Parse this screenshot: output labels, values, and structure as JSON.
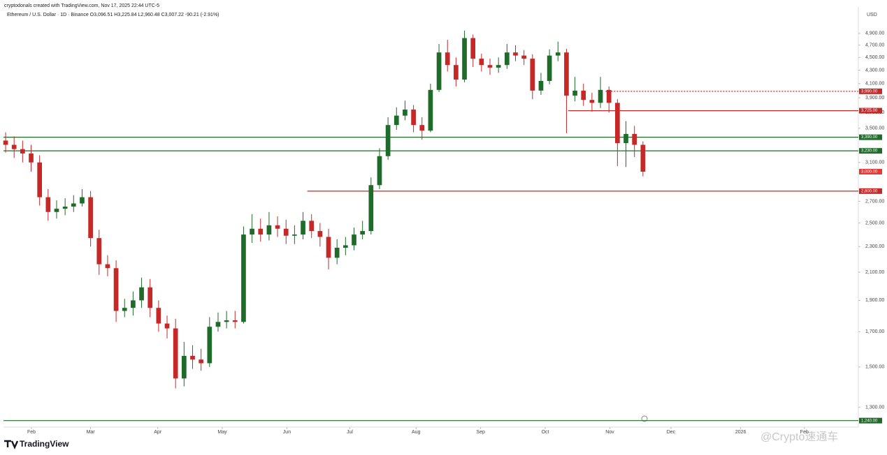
{
  "header": {
    "credit": "cryptodonals created with TradingView.com, Nov 17, 2025 22:44 UTC-5"
  },
  "footer": {
    "brand": "TradingView",
    "watermark": "@Crypto速通车"
  },
  "chart_data": {
    "type": "candlestick",
    "title": "Ethereum / U.S. Dollar · 1D · Binance  O3,096.51 H3,225.84 L2,960.48 C3,007.22 -90.21 (-2.91%)",
    "y_unit": "USD",
    "up_color": "#1e6b2a",
    "down_color": "#c62828",
    "log": true,
    "ylim": [
      1236,
      5316
    ],
    "yticks": [
      {
        "value": 4900,
        "label": "4,900.00"
      },
      {
        "value": 4700,
        "label": "4,700.00"
      },
      {
        "value": 4500,
        "label": "4,500.00"
      },
      {
        "value": 4300,
        "label": "4,300.00"
      },
      {
        "value": 4100,
        "label": "4,100.00"
      },
      {
        "value": 3900,
        "label": "3,900.00"
      },
      {
        "value": 3700,
        "label": "3,700.00"
      },
      {
        "value": 3500,
        "label": "3,500.00"
      },
      {
        "value": 3100,
        "label": "3,100.00"
      },
      {
        "value": 2700,
        "label": "2,700.00"
      },
      {
        "value": 2500,
        "label": "2,500.00"
      },
      {
        "value": 2300,
        "label": "2,300.00"
      },
      {
        "value": 2100,
        "label": "2,100.00"
      },
      {
        "value": 1900,
        "label": "1,900.00"
      },
      {
        "value": 1700,
        "label": "1,700.00"
      },
      {
        "value": 1500,
        "label": "1,500.00"
      },
      {
        "value": 1300,
        "label": "1,300.00"
      }
    ],
    "xlim": [
      -0.25,
      100.1
    ],
    "xticks": [
      {
        "value": 3.04,
        "label": "Feb"
      },
      {
        "value": 10.0,
        "label": "Mar"
      },
      {
        "value": 17.9,
        "label": "Apr"
      },
      {
        "value": 25.5,
        "label": "May"
      },
      {
        "value": 33.1,
        "label": "Jun"
      },
      {
        "value": 40.5,
        "label": "Jul"
      },
      {
        "value": 48.3,
        "label": "Aug"
      },
      {
        "value": 55.9,
        "label": "Sep"
      },
      {
        "value": 63.5,
        "label": "Oct"
      },
      {
        "value": 71.1,
        "label": "Nov"
      },
      {
        "value": 78.3,
        "label": "Dec"
      },
      {
        "value": 86.5,
        "label": "2026"
      },
      {
        "value": 94.0,
        "label": "Feb"
      }
    ],
    "open": [
      3350,
      3300,
      3250,
      3200,
      3100,
      2740,
      2600,
      2630,
      2650,
      2680,
      2740,
      2370,
      2160,
      2130,
      1830,
      1850,
      1900,
      1990,
      1850,
      1750,
      1720,
      1440,
      1560,
      1540,
      1520,
      1730,
      1760,
      1770,
      1760,
      2400,
      2450,
      2400,
      2480,
      2450,
      2390,
      2400,
      2520,
      2430,
      2380,
      2210,
      2290,
      2310,
      2400,
      2430,
      2860,
      3170,
      3540,
      3660,
      3740,
      3540,
      3470,
      4010,
      4580,
      4380,
      4160,
      4820,
      4480,
      4380,
      4340,
      4380,
      4580,
      4530,
      4480,
      4000,
      4140,
      4530,
      4580,
      3930,
      4000,
      3870,
      3830,
      4010,
      3830,
      3320,
      3430,
      3300
    ],
    "high": [
      3450,
      3400,
      3350,
      3300,
      3180,
      2820,
      2710,
      2730,
      2760,
      2820,
      2800,
      2440,
      2230,
      2190,
      1910,
      1960,
      2060,
      2050,
      1900,
      1800,
      1780,
      1640,
      1620,
      1600,
      1790,
      1820,
      1830,
      1830,
      2470,
      2580,
      2540,
      2600,
      2560,
      2530,
      2480,
      2600,
      2580,
      2500,
      2450,
      2360,
      2380,
      2460,
      2520,
      2940,
      3260,
      3640,
      3770,
      3860,
      3800,
      3640,
      4100,
      4720,
      4790,
      4500,
      4950,
      4880,
      4560,
      4480,
      4500,
      4720,
      4700,
      4620,
      4550,
      4260,
      4630,
      4760,
      4640,
      4200,
      4100,
      3970,
      4200,
      4060,
      3880,
      3590,
      3530,
      3340
    ],
    "low": [
      3210,
      3150,
      3100,
      3000,
      2660,
      2520,
      2540,
      2570,
      2600,
      2650,
      2300,
      2080,
      2070,
      1760,
      1790,
      1800,
      1850,
      1790,
      1700,
      1660,
      1390,
      1400,
      1490,
      1480,
      1500,
      1700,
      1720,
      1720,
      1750,
      2330,
      2340,
      2350,
      2380,
      2320,
      2320,
      2360,
      2370,
      2300,
      2120,
      2160,
      2230,
      2270,
      2360,
      2400,
      2820,
      3130,
      3480,
      3600,
      3450,
      3360,
      3450,
      3980,
      4280,
      4060,
      4120,
      4350,
      4280,
      4230,
      4260,
      4320,
      4440,
      4380,
      3880,
      3940,
      4090,
      4440,
      3440,
      3850,
      3790,
      3710,
      3760,
      3700,
      3060,
      3050,
      3160,
      2950
    ],
    "close": [
      3300,
      3250,
      3200,
      3100,
      2740,
      2600,
      2630,
      2650,
      2680,
      2740,
      2370,
      2160,
      2130,
      1830,
      1850,
      1900,
      1990,
      1850,
      1750,
      1720,
      1440,
      1560,
      1540,
      1520,
      1730,
      1760,
      1770,
      1760,
      2400,
      2450,
      2400,
      2480,
      2450,
      2390,
      2400,
      2520,
      2430,
      2380,
      2210,
      2290,
      2310,
      2400,
      2430,
      2860,
      3170,
      3540,
      3660,
      3740,
      3540,
      3470,
      4010,
      4580,
      4380,
      4160,
      4820,
      4480,
      4380,
      4340,
      4380,
      4580,
      4530,
      4480,
      4000,
      4140,
      4530,
      4580,
      3930,
      4000,
      3870,
      3830,
      4010,
      3830,
      3320,
      3430,
      3300,
      3000
    ],
    "levels": [
      {
        "value": 3990,
        "label": "3,990.00",
        "color": "#c62828",
        "from": 70.6,
        "style": "dotted"
      },
      {
        "value": 3725,
        "label": "3,725.00",
        "color": "#c62828",
        "from": 66.2,
        "style": "solid"
      },
      {
        "value": 3390,
        "label": "3,390.00",
        "color": "#1e6b2a",
        "from": -0.25,
        "style": "solid"
      },
      {
        "value": 3230,
        "label": "3,230.00",
        "color": "#1e6b2a",
        "from": -0.25,
        "style": "solid"
      },
      {
        "value": 3000,
        "label": "3,000.00",
        "color": "#e53935",
        "from": 100.1,
        "style": "tag"
      },
      {
        "value": 2800,
        "label": "2,800.00",
        "color": "#c62828",
        "from": 35.5,
        "style": "solid"
      },
      {
        "value": 1240,
        "label": "1,240.00",
        "color": "#1e6b2a",
        "from": -0.25,
        "style": "solid"
      }
    ]
  }
}
